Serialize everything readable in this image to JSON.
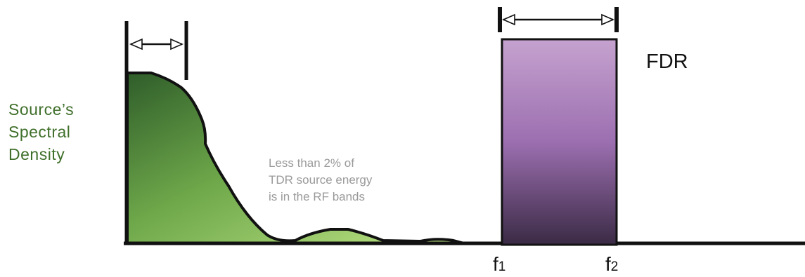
{
  "y_axis_label": [
    "Source’s",
    "Spectral",
    "Density"
  ],
  "note": [
    "Less than 2% of",
    "TDR source energy",
    "is in the RF bands"
  ],
  "fdr_label": "FDR",
  "f1": {
    "base": "f",
    "sub": "1"
  },
  "f2": {
    "base": "f",
    "sub": "2"
  },
  "colors": {
    "tdr_fill_light": "#b6e07a",
    "tdr_fill_dark": "#2f5d2a",
    "fdr_top": "#c5a2cf",
    "fdr_mid": "#9c6fb0",
    "fdr_bottom": "#3a2a45",
    "label_green": "#3f6f2a",
    "note_gray": "#9a9a9a"
  }
}
